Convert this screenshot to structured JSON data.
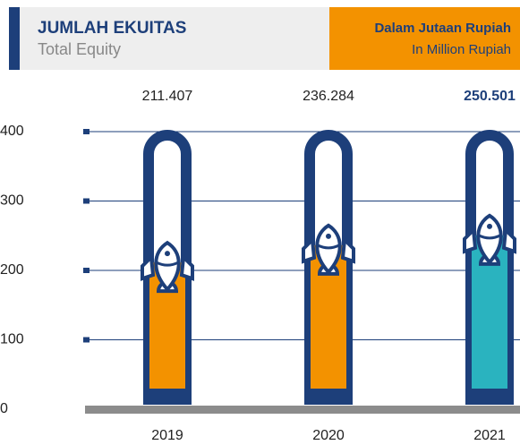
{
  "chart_data": {
    "type": "thermometer-bar",
    "title": "JUMLAH EKUITAS",
    "subtitle": "Total Equity",
    "unit_label": "Dalam Jutaan Rupiah",
    "unit_sublabel": "In Million Rupiah",
    "categories": [
      "2019",
      "2020",
      "2021"
    ],
    "values": [
      211.407,
      236.284,
      250.501
    ],
    "colors": [
      "#f39200",
      "#f39200",
      "#2ab3bf"
    ],
    "ylim": [
      0,
      400
    ],
    "yticks": [
      0,
      100,
      200,
      300,
      400
    ],
    "grid": true
  }
}
